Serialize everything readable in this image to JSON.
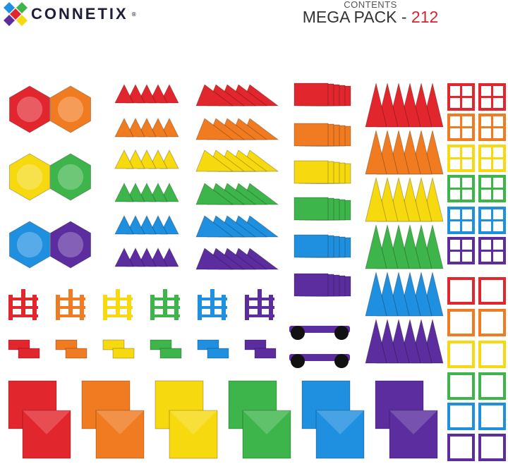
{
  "brand": {
    "name": "CONNETIX",
    "registered": "®"
  },
  "header": {
    "subtitle": "CONTENTS",
    "title": "MEGA PACK - ",
    "count": "212"
  },
  "colors": {
    "red": "#e2262e",
    "orange": "#f07b20",
    "yellow": "#f6d90f",
    "green": "#3db54a",
    "blue": "#1f8fe0",
    "purple": "#5b2d9e"
  },
  "color_order": [
    "red",
    "orange",
    "yellow",
    "green",
    "blue",
    "purple"
  ]
}
